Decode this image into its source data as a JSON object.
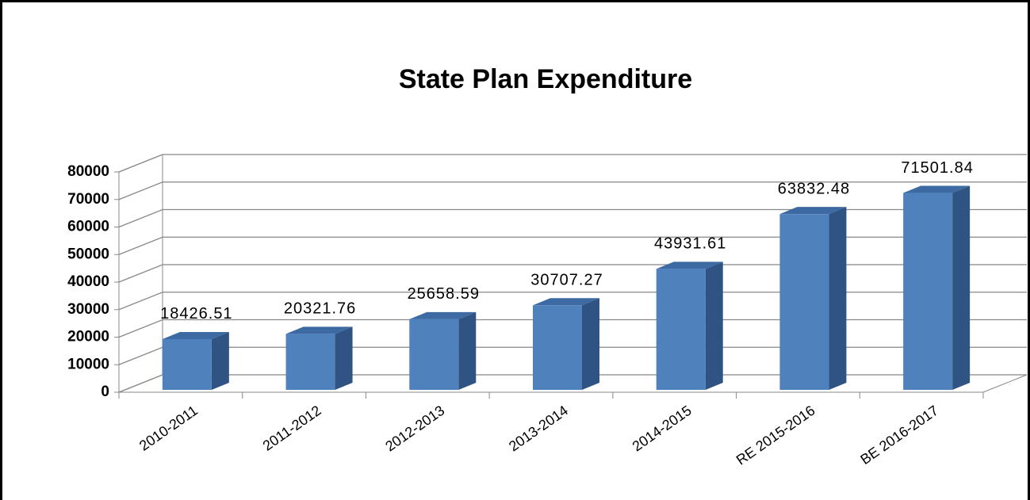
{
  "chart_data": {
    "type": "bar3d",
    "title": "State Plan Expenditure",
    "categories": [
      "2010-2011",
      "2011-2012",
      "2012-2013",
      "2013-2014",
      "2014-2015",
      "RE 2015-2016",
      "BE 2016-2017"
    ],
    "values": [
      18426.51,
      20321.76,
      25658.59,
      30707.27,
      43931.61,
      63832.48,
      71501.84
    ],
    "color": "#4f81bd",
    "ylim": [
      0,
      80000
    ],
    "yticks": [
      0,
      10000,
      20000,
      30000,
      40000,
      50000,
      60000,
      70000,
      80000
    ],
    "grid": true
  }
}
